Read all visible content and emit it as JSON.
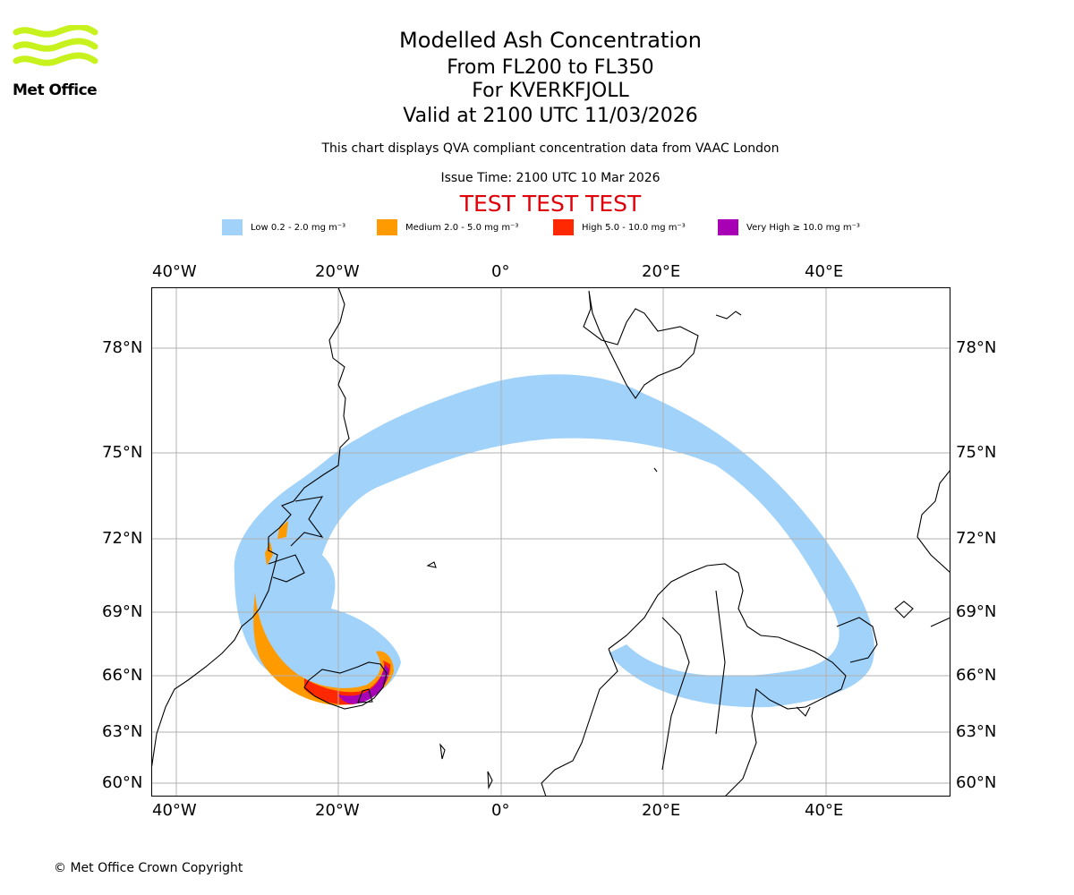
{
  "logo": {
    "text": "Met Office",
    "brand_color": "#c8f21e"
  },
  "header": {
    "title": "Modelled Ash Concentration",
    "levels": "From FL200 to FL350",
    "volcano": "For KVERKFJOLL",
    "valid": "Valid at 2100 UTC 11/03/2026",
    "description": "This chart displays QVA compliant concentration data from VAAC London",
    "issue_time": "Issue Time: 2100 UTC 10 Mar 2026",
    "test_banner": "TEST TEST TEST"
  },
  "legend": [
    {
      "label": "Low 0.2 - 2.0 mg m⁻³",
      "color": "#a0d2fa"
    },
    {
      "label": "Medium 2.0 - 5.0 mg m⁻³",
      "color": "#ff9a00"
    },
    {
      "label": "High 5.0 - 10.0 mg m⁻³",
      "color": "#ff2800"
    },
    {
      "label": "Very High ≥ 10.0 mg m⁻³",
      "color": "#a800b4"
    }
  ],
  "map": {
    "lon_labels": [
      "40°W",
      "20°W",
      "0°",
      "20°E",
      "40°E"
    ],
    "lat_labels": [
      "78°N",
      "75°N",
      "72°N",
      "69°N",
      "66°N",
      "63°N",
      "60°N"
    ],
    "gridlines": true
  },
  "footer": {
    "copyright": "© Met Office Crown Copyright"
  }
}
